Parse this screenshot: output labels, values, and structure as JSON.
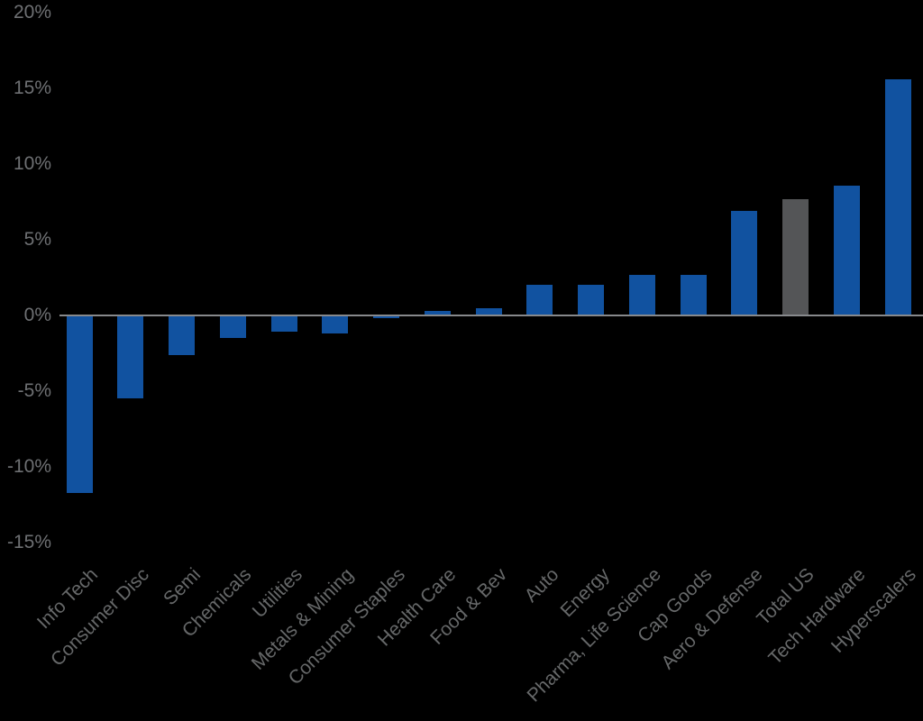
{
  "chart_data": {
    "type": "bar",
    "title": "",
    "xlabel": "",
    "ylabel": "",
    "categories": [
      "Info Tech",
      "Consumer Disc",
      "Semi",
      "Chemicals",
      "Utilities",
      "Metals & Mining",
      "Consumer Staples",
      "Health Care",
      "Food & Bev",
      "Auto",
      "Energy",
      "Pharma, Life Science",
      "Cap Goods",
      "Aero & Defense",
      "Total US",
      "Tech Hardware",
      "Hyperscalers"
    ],
    "values": [
      -11.7,
      -5.5,
      -2.6,
      -1.5,
      -1.1,
      -1.2,
      -0.2,
      0.3,
      0.5,
      2.0,
      2.0,
      2.7,
      2.7,
      6.9,
      7.7,
      8.6,
      15.6
    ],
    "unit": "%",
    "highlight_category": "Total US",
    "ylim": [
      -15,
      20
    ],
    "yticks": [
      {
        "label": "20%",
        "value": 20
      },
      {
        "label": "15%",
        "value": 15
      },
      {
        "label": "10%",
        "value": 10
      },
      {
        "label": "5%",
        "value": 5
      },
      {
        "label": "0%",
        "value": 0
      },
      {
        "label": "-5%",
        "value": -5
      },
      {
        "label": "-10%",
        "value": -10
      },
      {
        "label": "-15%",
        "value": -15
      }
    ],
    "grid": "off",
    "legend": "none",
    "colors": {
      "background": "#000000",
      "bar_default": "#1152A0",
      "bar_highlight": "#545557",
      "zero_line": "#87898C",
      "ytick_text": "#6E7073",
      "xlabel_text": "#666869"
    }
  }
}
